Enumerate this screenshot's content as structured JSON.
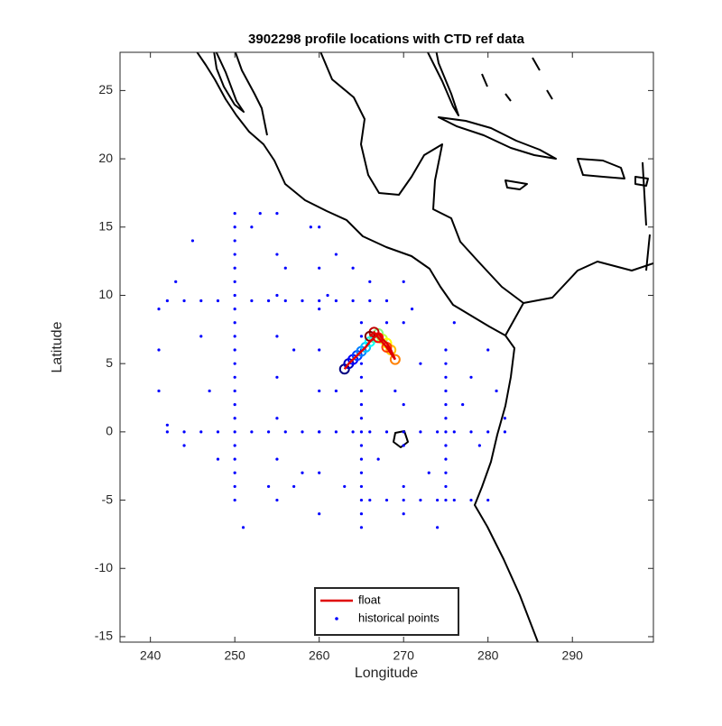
{
  "chart_data": {
    "type": "scatter",
    "title": "3902298 profile locations with CTD ref data",
    "x_label": "Longitude",
    "y_label": "Latitude",
    "xlim": [
      236.4,
      299.6
    ],
    "ylim": [
      -15.4,
      27.8
    ],
    "xticks": [
      240,
      250,
      260,
      270,
      280,
      290
    ],
    "yticks": [
      -15,
      -10,
      -5,
      0,
      5,
      10,
      15,
      20,
      25
    ],
    "grid": false,
    "legend": "south",
    "series": [
      {
        "name": "float",
        "color": "#e00000",
        "style": "line",
        "colormap": "jet",
        "x": [
          263,
          263.5,
          264,
          264.5,
          265,
          265.5,
          266,
          266.5,
          267,
          267.5,
          268,
          268.5,
          269,
          268,
          267,
          266.5,
          266
        ],
        "values": [
          4.6,
          5.0,
          5.3,
          5.6,
          5.9,
          6.2,
          6.6,
          6.9,
          7.2,
          6.8,
          6.5,
          6.0,
          5.3,
          6.2,
          6.9,
          7.3,
          7.0
        ]
      },
      {
        "name": "historical points",
        "color": "#0000ff",
        "style": "dot",
        "x": [
          250,
          250,
          250,
          250,
          250,
          250,
          250,
          250,
          250,
          250,
          250,
          250,
          250,
          250,
          250,
          250,
          250,
          250,
          250,
          250,
          250,
          250,
          265,
          265,
          265,
          265,
          265,
          265,
          265,
          265,
          265,
          265,
          265,
          265,
          265,
          265,
          265,
          265,
          275,
          275,
          275,
          275,
          275,
          275,
          275,
          275,
          275,
          275,
          275,
          275,
          242,
          244,
          246,
          248,
          252,
          254,
          256,
          258,
          260,
          262,
          264,
          266,
          268,
          270,
          272,
          274,
          276,
          278,
          280,
          282,
          242,
          244,
          246,
          248,
          252,
          254,
          256,
          258,
          260,
          262,
          264,
          266,
          268,
          266,
          268,
          270,
          272,
          274,
          276,
          278,
          280,
          255,
          255,
          255,
          255,
          255,
          255,
          255,
          255,
          260,
          260,
          260,
          260,
          260,
          260,
          260,
          260,
          270,
          270,
          270,
          270,
          270,
          241,
          241,
          241,
          242,
          243,
          245,
          246,
          247,
          248,
          252,
          253,
          254,
          256,
          257,
          258,
          259,
          261,
          262,
          263,
          264,
          266,
          267,
          268,
          269,
          271,
          272,
          273,
          276,
          277,
          278,
          279,
          280,
          281,
          282,
          244,
          251,
          257,
          262,
          270,
          274
        ],
        "values": [
          -5,
          -4,
          -3,
          -2,
          -1,
          0,
          1,
          2,
          3,
          4,
          5,
          6,
          7,
          8,
          9,
          10,
          11,
          12,
          13,
          14,
          15,
          16,
          -7,
          -6,
          -5,
          -4,
          -3,
          -2,
          -1,
          0,
          1,
          2,
          3,
          4,
          5,
          6,
          7,
          8,
          -5,
          -4,
          -3,
          -2,
          -1,
          0,
          1,
          2,
          3,
          4,
          5,
          6,
          0,
          0,
          0,
          0,
          0,
          0,
          0,
          0,
          0,
          0,
          0,
          0,
          0,
          0,
          0,
          0,
          0,
          0,
          0,
          0,
          9.6,
          9.6,
          9.6,
          9.6,
          9.6,
          9.6,
          9.6,
          9.6,
          9.6,
          9.6,
          9.6,
          9.6,
          9.6,
          -5,
          -5,
          -5,
          -5,
          -5,
          -5,
          -5,
          -5,
          -5,
          -2,
          1,
          4,
          7,
          10,
          13,
          16,
          -6,
          -3,
          0,
          3,
          6,
          9,
          12,
          15,
          -4,
          -1,
          2,
          8,
          11,
          9,
          6,
          3,
          0.5,
          11,
          14,
          7,
          3,
          -2,
          15,
          16,
          -4,
          12,
          6,
          -3,
          15,
          10,
          3,
          -4,
          12,
          11,
          -2,
          8,
          3,
          9,
          5,
          -3,
          8,
          2,
          4,
          -1,
          6,
          3,
          1,
          -1,
          -7,
          -4,
          13,
          -6,
          -7
        ]
      }
    ]
  }
}
